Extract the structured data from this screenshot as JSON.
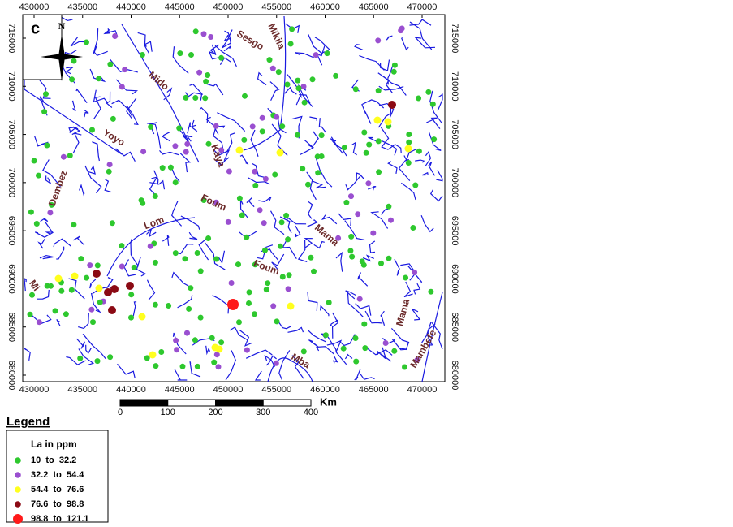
{
  "map": {
    "panel_label": "c",
    "north": "N",
    "xticks": [
      430000,
      435000,
      440000,
      445000,
      450000,
      455000,
      460000,
      465000,
      470000
    ],
    "yticks": [
      680000,
      685000,
      690000,
      695000,
      700000,
      705000,
      710000,
      715000
    ],
    "rivers": [
      "Sesgo",
      "Mikila",
      "Mido",
      "Yoyo",
      "Dembez",
      "Kaya",
      "Foum",
      "Lom",
      "Mama",
      "Foum",
      "Mi",
      "Mba",
      "Mama",
      "Mambefe"
    ],
    "scale": {
      "ticks": [
        0,
        100,
        200,
        300,
        400
      ],
      "unit": "Km"
    }
  },
  "legend": {
    "title": "Legend",
    "subtitle": "La in ppm",
    "classes": [
      {
        "label": "10  to  32.2",
        "color": "#2ec82e"
      },
      {
        "label": "32.2  to  54.4",
        "color": "#9a4fd0"
      },
      {
        "label": "54.4  to  76.6",
        "color": "#ffff1e"
      },
      {
        "label": "76.6  to  98.8",
        "color": "#8b0a14"
      },
      {
        "label": "98.8  to  121.1",
        "color": "#ff1a1a"
      }
    ]
  }
}
